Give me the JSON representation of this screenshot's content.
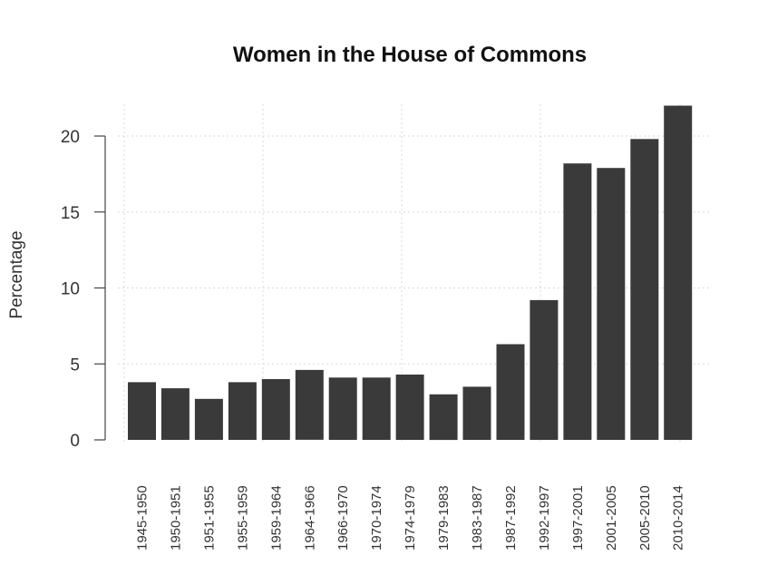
{
  "chart_data": {
    "type": "bar",
    "title": "Women in the House of Commons",
    "xlabel": "",
    "ylabel": "Percentage",
    "ylim": [
      0,
      22
    ],
    "yticks": [
      0,
      5,
      10,
      15,
      20
    ],
    "grid": true,
    "legend": null,
    "bar_color": "#3a3a3a",
    "categories": [
      "1945-1950",
      "1950-1951",
      "1951-1955",
      "1955-1959",
      "1959-1964",
      "1964-1966",
      "1966-1970",
      "1970-1974",
      "1974-1979",
      "1979-1983",
      "1983-1987",
      "1987-1992",
      "1992-1997",
      "1997-2001",
      "2001-2005",
      "2005-2010",
      "2010-2014"
    ],
    "values": [
      3.8,
      3.4,
      2.7,
      3.8,
      4.0,
      4.6,
      4.1,
      4.1,
      4.3,
      3.0,
      3.5,
      6.3,
      9.2,
      18.2,
      17.9,
      19.8,
      22.0
    ]
  }
}
